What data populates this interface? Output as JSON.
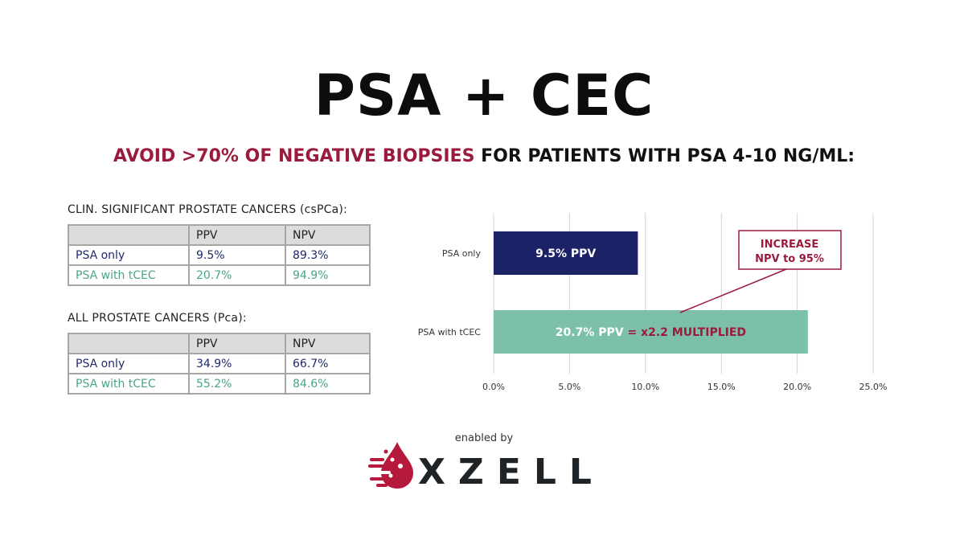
{
  "title": "PSA + CEC",
  "subtitle": {
    "accent": "AVOID >70% OF NEGATIVE BIOPSIES",
    "rest": "FOR PATIENTS WITH PSA 4-10 NG/ML:"
  },
  "tables": [
    {
      "label": "CLIN. SIGNIFICANT PROSTATE CANCERS (csPCa):",
      "headers": [
        "",
        "PPV",
        "NPV"
      ],
      "rows": [
        [
          "PSA only",
          "9.5%",
          "89.3%"
        ],
        [
          "PSA with tCEC",
          "20.7%",
          "94.9%"
        ]
      ]
    },
    {
      "label": "ALL PROSTATE CANCERS (Pca):",
      "headers": [
        "",
        "PPV",
        "NPV"
      ],
      "rows": [
        [
          "PSA only",
          "34.9%",
          "66.7%"
        ],
        [
          "PSA with tCEC",
          "55.2%",
          "84.6%"
        ]
      ]
    }
  ],
  "chart_data": {
    "type": "bar",
    "orientation": "horizontal",
    "categories": [
      "PSA only",
      "PSA with tCEC"
    ],
    "values": [
      9.5,
      20.7
    ],
    "bar_labels": [
      "9.5% PPV",
      "20.7% PPV"
    ],
    "bar_label_suffix": [
      "",
      " = x2.2 MULTIPLIED"
    ],
    "bar_colors": [
      "#1b2265",
      "#7cc0aa"
    ],
    "xlim": [
      0,
      25
    ],
    "xticks": [
      "0.0%",
      "5.0%",
      "10.0%",
      "15.0%",
      "20.0%",
      "25.0%"
    ],
    "grid": true,
    "annotation": {
      "lines": [
        "INCREASE",
        "NPV to 95%"
      ],
      "color": "#9b1b3d"
    }
  },
  "footer": {
    "enabled_by": "enabled by",
    "brand": "XZELL"
  },
  "colors": {
    "accent": "#9b1b3d",
    "navy": "#1e2a6b",
    "green": "#4aa487"
  }
}
